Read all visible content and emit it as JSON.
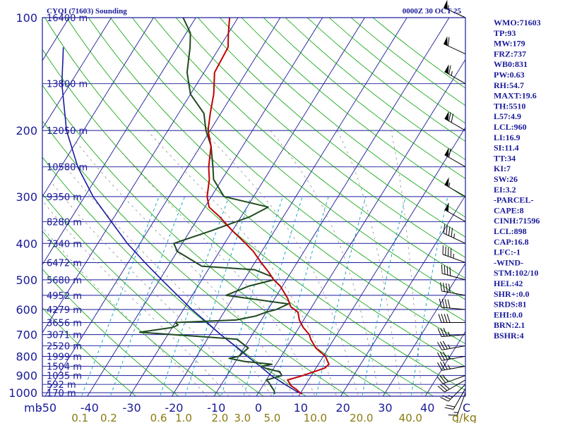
{
  "chart_data": {
    "type": "line",
    "title": "CYQI (71603) Sounding",
    "timestamp": "0000Z 30 OCT 25",
    "diagram": "skew-T log-P",
    "x_units_label": "C",
    "mixing_units_label": "g/kg",
    "y_corner_label": "mb",
    "pressure_ticks": [
      100,
      200,
      300,
      400,
      500,
      600,
      700,
      800,
      900,
      1000
    ],
    "temperature_ticks": [
      -50,
      -40,
      -30,
      -20,
      -10,
      0,
      10,
      20,
      30,
      40
    ],
    "mixing_ratio_ticks": [
      "0.1",
      "0.2",
      "0.6",
      "1.0",
      "2.0",
      "3.0",
      "5.0",
      "10.0",
      "20.0",
      "40.0"
    ],
    "height_labels": [
      {
        "p": 100,
        "text": "16400 m"
      },
      {
        "p": 150,
        "text": "13800 m"
      },
      {
        "p": 200,
        "text": "12050 m"
      },
      {
        "p": 250,
        "text": "10580 m"
      },
      {
        "p": 300,
        "text": "9350 m"
      },
      {
        "p": 350,
        "text": "8280 m"
      },
      {
        "p": 400,
        "text": "7340 m"
      },
      {
        "p": 450,
        "text": "6472 m"
      },
      {
        "p": 500,
        "text": "5680 m"
      },
      {
        "p": 550,
        "text": "4952 m"
      },
      {
        "p": 600,
        "text": "4279 m"
      },
      {
        "p": 650,
        "text": "3656 m"
      },
      {
        "p": 700,
        "text": "3071 m"
      },
      {
        "p": 750,
        "text": "2520 m"
      },
      {
        "p": 800,
        "text": "1999 m"
      },
      {
        "p": 850,
        "text": "1504 m"
      },
      {
        "p": 900,
        "text": "1035 m"
      },
      {
        "p": 950,
        "text": "592 m"
      },
      {
        "p": 1000,
        "text": "170 m"
      }
    ],
    "series": [
      {
        "color": "#c00000",
        "points": [
          [
            1008,
            10.5
          ],
          [
            1000,
            9.8
          ],
          [
            980,
            8.5
          ],
          [
            960,
            6.8
          ],
          [
            940,
            5.8
          ],
          [
            925,
            5.0
          ],
          [
            900,
            8.0
          ],
          [
            860,
            12.0
          ],
          [
            840,
            12.5
          ],
          [
            800,
            10.5
          ],
          [
            760,
            7.0
          ],
          [
            720,
            4.5
          ],
          [
            700,
            3.5
          ],
          [
            670,
            1.0
          ],
          [
            640,
            -1.0
          ],
          [
            610,
            -2.5
          ],
          [
            590,
            -5.0
          ],
          [
            560,
            -7.0
          ],
          [
            520,
            -10.5
          ],
          [
            500,
            -13.0
          ],
          [
            480,
            -15.0
          ],
          [
            450,
            -18.5
          ],
          [
            420,
            -22.0
          ],
          [
            400,
            -25.0
          ],
          [
            370,
            -30.0
          ],
          [
            340,
            -35.0
          ],
          [
            320,
            -39.0
          ],
          [
            300,
            -41.0
          ],
          [
            270,
            -43.0
          ],
          [
            250,
            -45.0
          ],
          [
            220,
            -47.5
          ],
          [
            200,
            -50.5
          ],
          [
            180,
            -52.5
          ],
          [
            160,
            -54.5
          ],
          [
            140,
            -57.5
          ],
          [
            120,
            -58.0
          ],
          [
            110,
            -60.0
          ],
          [
            100,
            -62.0
          ]
        ]
      },
      {
        "color": "#1f4a1f",
        "points": [
          [
            1008,
            4.0
          ],
          [
            990,
            3.5
          ],
          [
            960,
            2.0
          ],
          [
            940,
            1.0
          ],
          [
            925,
            0.0
          ],
          [
            900,
            3.0
          ],
          [
            880,
            2.0
          ],
          [
            860,
            -2.0
          ],
          [
            850,
            -3.0
          ],
          [
            840,
            -1.0
          ],
          [
            825,
            -8.0
          ],
          [
            810,
            -12.0
          ],
          [
            800,
            -10.0
          ],
          [
            760,
            -9.0
          ],
          [
            720,
            -13.0
          ],
          [
            690,
            -37.0
          ],
          [
            670,
            -30.0
          ],
          [
            660,
            -29.0
          ],
          [
            650,
            -30.0
          ],
          [
            640,
            -16.0
          ],
          [
            625,
            -12.0
          ],
          [
            610,
            -10.0
          ],
          [
            600,
            -8.0
          ],
          [
            580,
            -6.0
          ],
          [
            550,
            -22.0
          ],
          [
            520,
            -18.0
          ],
          [
            500,
            -13.0
          ],
          [
            490,
            -14.0
          ],
          [
            470,
            -19.0
          ],
          [
            460,
            -32.0
          ],
          [
            420,
            -40.0
          ],
          [
            400,
            -42.0
          ],
          [
            370,
            -35.0
          ],
          [
            340,
            -28.0
          ],
          [
            320,
            -25.0
          ],
          [
            300,
            -37.0
          ],
          [
            270,
            -42.0
          ],
          [
            250,
            -44.0
          ],
          [
            220,
            -47.5
          ],
          [
            200,
            -51.0
          ],
          [
            180,
            -54.0
          ],
          [
            160,
            -60.0
          ],
          [
            140,
            -64.0
          ],
          [
            120,
            -67.0
          ],
          [
            110,
            -69.0
          ],
          [
            100,
            -73.0
          ]
        ]
      }
    ],
    "parcel_path": [
      [
        1000,
        9.5
      ],
      [
        950,
        5.0
      ],
      [
        900,
        0.5
      ],
      [
        850,
        -3.5
      ],
      [
        800,
        -8.0
      ],
      [
        750,
        -12.5
      ],
      [
        700,
        -17.5
      ],
      [
        650,
        -22.5
      ],
      [
        600,
        -28.0
      ],
      [
        550,
        -33.5
      ],
      [
        500,
        -39.5
      ],
      [
        450,
        -46.0
      ],
      [
        400,
        -53.0
      ],
      [
        350,
        -60.0
      ],
      [
        300,
        -68.0
      ],
      [
        250,
        -76.0
      ],
      [
        200,
        -84.0
      ],
      [
        150,
        -92.0
      ],
      [
        120,
        -97.0
      ]
    ],
    "winds": [
      {
        "p": 1000,
        "dir": 200,
        "spd": 15
      },
      {
        "p": 975,
        "dir": 210,
        "spd": 20
      },
      {
        "p": 950,
        "dir": 225,
        "spd": 25
      },
      {
        "p": 925,
        "dir": 240,
        "spd": 30
      },
      {
        "p": 900,
        "dir": 250,
        "spd": 30
      },
      {
        "p": 850,
        "dir": 260,
        "spd": 35
      },
      {
        "p": 800,
        "dir": 260,
        "spd": 35
      },
      {
        "p": 750,
        "dir": 260,
        "spd": 35
      },
      {
        "p": 700,
        "dir": 265,
        "spd": 35
      },
      {
        "p": 650,
        "dir": 270,
        "spd": 40
      },
      {
        "p": 600,
        "dir": 275,
        "spd": 40
      },
      {
        "p": 550,
        "dir": 280,
        "spd": 40
      },
      {
        "p": 500,
        "dir": 285,
        "spd": 40
      },
      {
        "p": 450,
        "dir": 290,
        "spd": 45
      },
      {
        "p": 400,
        "dir": 295,
        "spd": 45
      },
      {
        "p": 350,
        "dir": 300,
        "spd": 50
      },
      {
        "p": 300,
        "dir": 300,
        "spd": 55
      },
      {
        "p": 250,
        "dir": 300,
        "spd": 60
      },
      {
        "p": 200,
        "dir": 300,
        "spd": 70
      },
      {
        "p": 150,
        "dir": 300,
        "spd": 65
      },
      {
        "p": 125,
        "dir": 295,
        "spd": 60
      },
      {
        "p": 100,
        "dir": 295,
        "spd": 55
      }
    ],
    "indices": [
      "WMO:71603",
      "TP:93",
      "MW:179",
      "FRZ:737",
      "WB0:831",
      "PW:0.63",
      "RH:54.7",
      "MAXT:19.6",
      "TH:5510",
      "L57:4.9",
      "LCL:960",
      "LI:16.9",
      "SI:11.4",
      "TT:34",
      "KI:7",
      "SW:26",
      "EI:3.2",
      "-PARCEL-",
      "CAPE:8",
      "CINH:71596",
      "LCL:898",
      "CAP:16.8",
      "LFC:-1",
      "-WIND-",
      "STM:102/10",
      "HEL:42",
      "SHR+:0.0",
      "SRDS:81",
      "EHI:0.0",
      "BRN:2.1",
      "BSHR:4"
    ],
    "colors": {
      "isobar": "#1a1a9a",
      "isotherm": "#1a1a9a",
      "dry_adiabat": "#00a000",
      "mixing_ratio": "#00a0c0",
      "moist_adiabat": "#808080",
      "temperature": "#c00000",
      "dewpoint": "#1f4a1f",
      "parcel": "#1a1aa0",
      "text": "#1a1a9a",
      "mixing_label": "#8a7a10"
    }
  }
}
